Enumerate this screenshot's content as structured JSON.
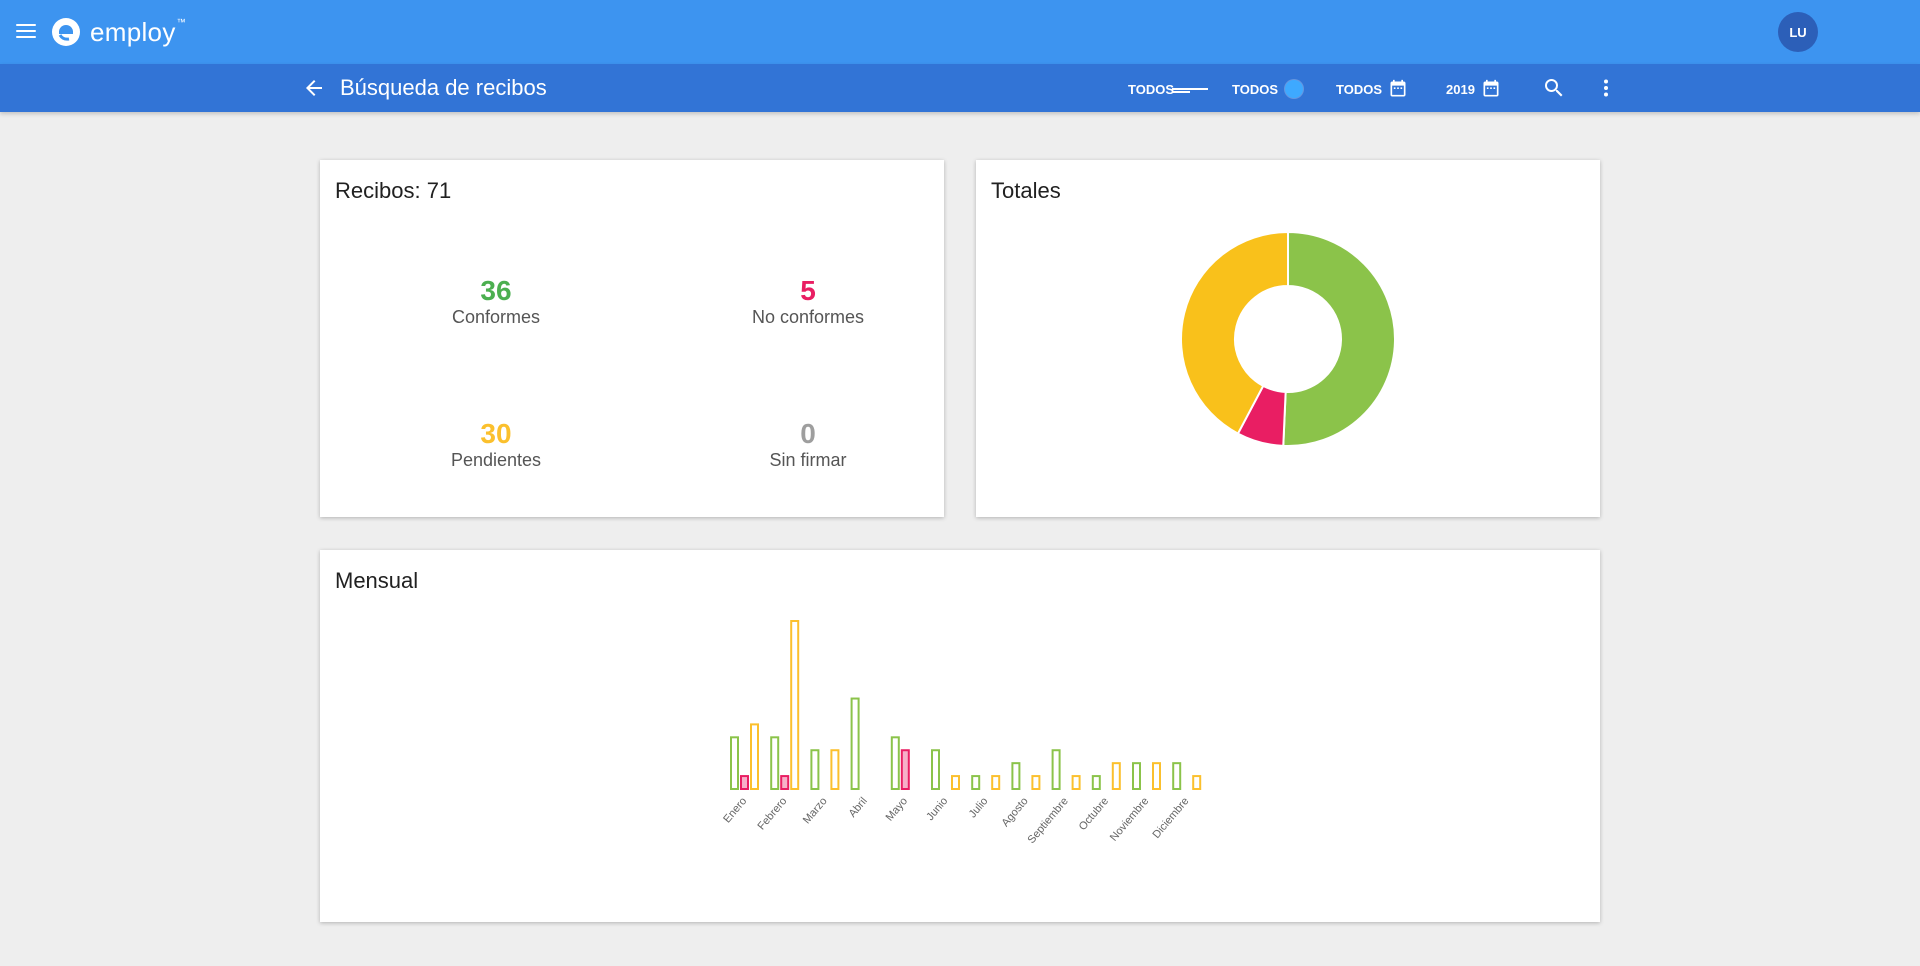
{
  "app": {
    "logo_text": "employ",
    "logo_mark": "™",
    "avatar_initials": "LU"
  },
  "subbar": {
    "title": "Búsqueda de recibos",
    "filters": [
      {
        "label": "TODOS",
        "icon": "lines-icon"
      },
      {
        "label": "TODOS",
        "icon": "circle-icon"
      },
      {
        "label": "TODOS",
        "icon": "calendar-icon"
      },
      {
        "label": "2019",
        "icon": "calendar-icon"
      }
    ]
  },
  "summary": {
    "title": "Recibos: 71",
    "stats": [
      {
        "value": "36",
        "label": "Conformes",
        "color": "#4caf50"
      },
      {
        "value": "5",
        "label": "No conformes",
        "color": "#e91e63"
      },
      {
        "value": "30",
        "label": "Pendientes",
        "color": "#fbc02d"
      },
      {
        "value": "0",
        "label": "Sin firmar",
        "color": "#9e9e9e"
      }
    ]
  },
  "totales": {
    "title": "Totales"
  },
  "mensual": {
    "title": "Mensual"
  },
  "chart_data": [
    {
      "type": "pie",
      "title": "Totales",
      "categories": [
        "Conformes",
        "No conformes",
        "Pendientes"
      ],
      "values": [
        36,
        5,
        30
      ],
      "colors": [
        "#8bc34a",
        "#e91e63",
        "#f9c11b"
      ],
      "donut": true
    },
    {
      "type": "bar",
      "title": "Mensual",
      "categories": [
        "Enero",
        "Febrero",
        "Marzo",
        "Abril",
        "Mayo",
        "Junio",
        "Julio",
        "Agosto",
        "Septiembre",
        "Octubre",
        "Noviembre",
        "Diciembre"
      ],
      "series": [
        {
          "values": [
            4,
            4,
            3,
            7,
            4,
            3,
            1,
            2,
            3,
            1,
            2,
            2
          ],
          "color": "#8bc34a"
        },
        {
          "values": [
            1,
            1,
            0,
            0,
            3,
            0,
            0,
            0,
            0,
            0,
            0,
            0
          ],
          "color": "#e91e63"
        },
        {
          "values": [
            5,
            13,
            3,
            0,
            0,
            1,
            1,
            1,
            1,
            2,
            2,
            1
          ],
          "color": "#fbc02d"
        }
      ],
      "ylim": [
        0,
        13
      ],
      "grid": false
    }
  ]
}
